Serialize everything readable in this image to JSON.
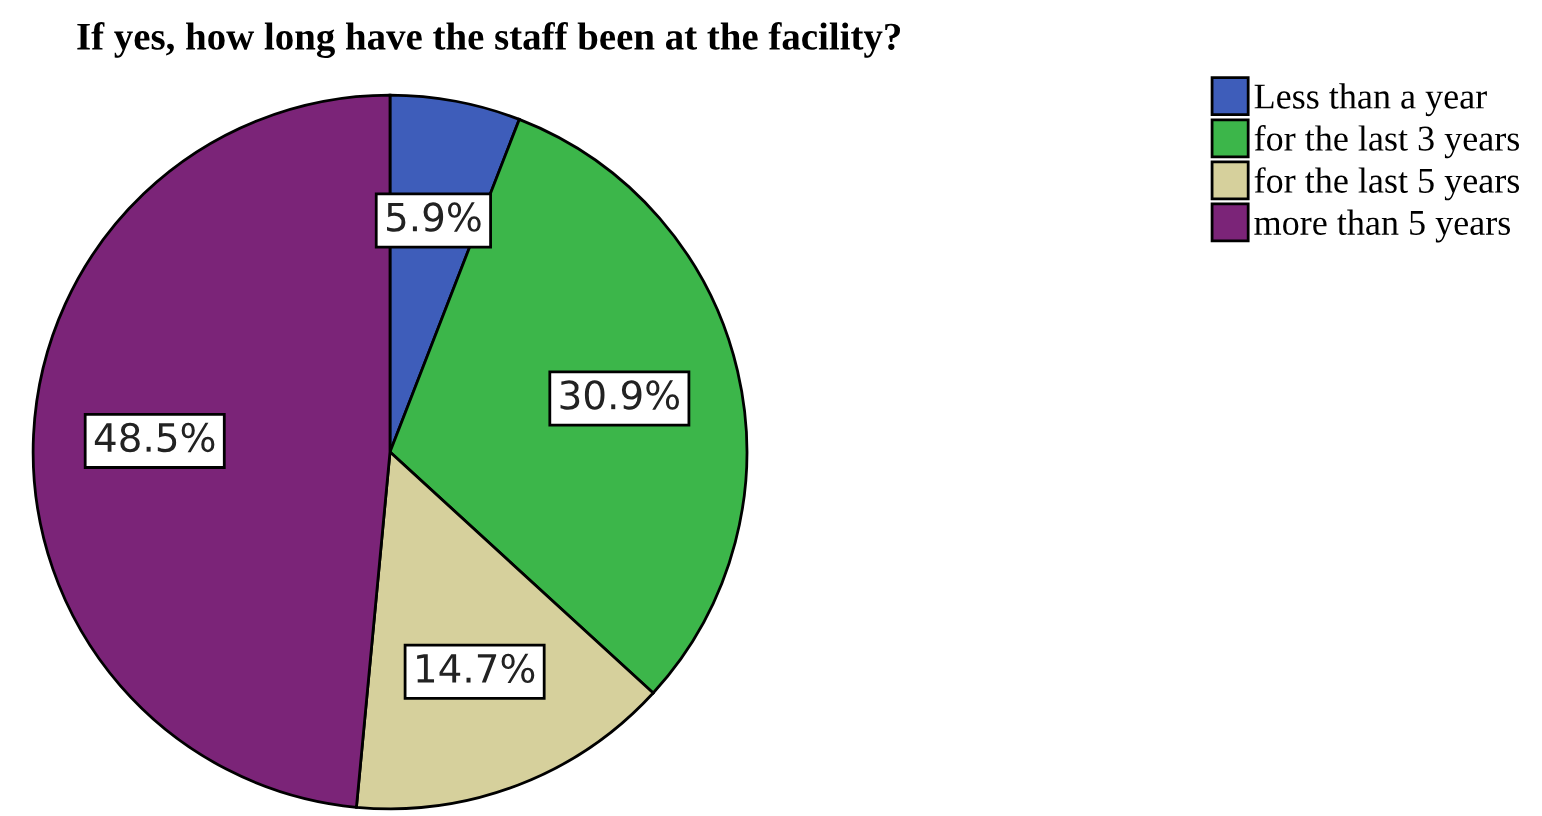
{
  "chart_data": {
    "type": "pie",
    "title": "If yes, how long have the staff been at the facility?",
    "categories": [
      "Less than a year",
      "for the last 3 years",
      "for the last 5 years",
      "more than 5 years"
    ],
    "values": [
      5.9,
      30.9,
      14.7,
      48.5
    ],
    "colors": [
      "#3e5dba",
      "#3cb64a",
      "#d6d09c",
      "#7b2478"
    ],
    "value_labels": [
      "5.9%",
      "30.9%",
      "14.7%",
      "48.5%"
    ],
    "legend": "top right"
  }
}
